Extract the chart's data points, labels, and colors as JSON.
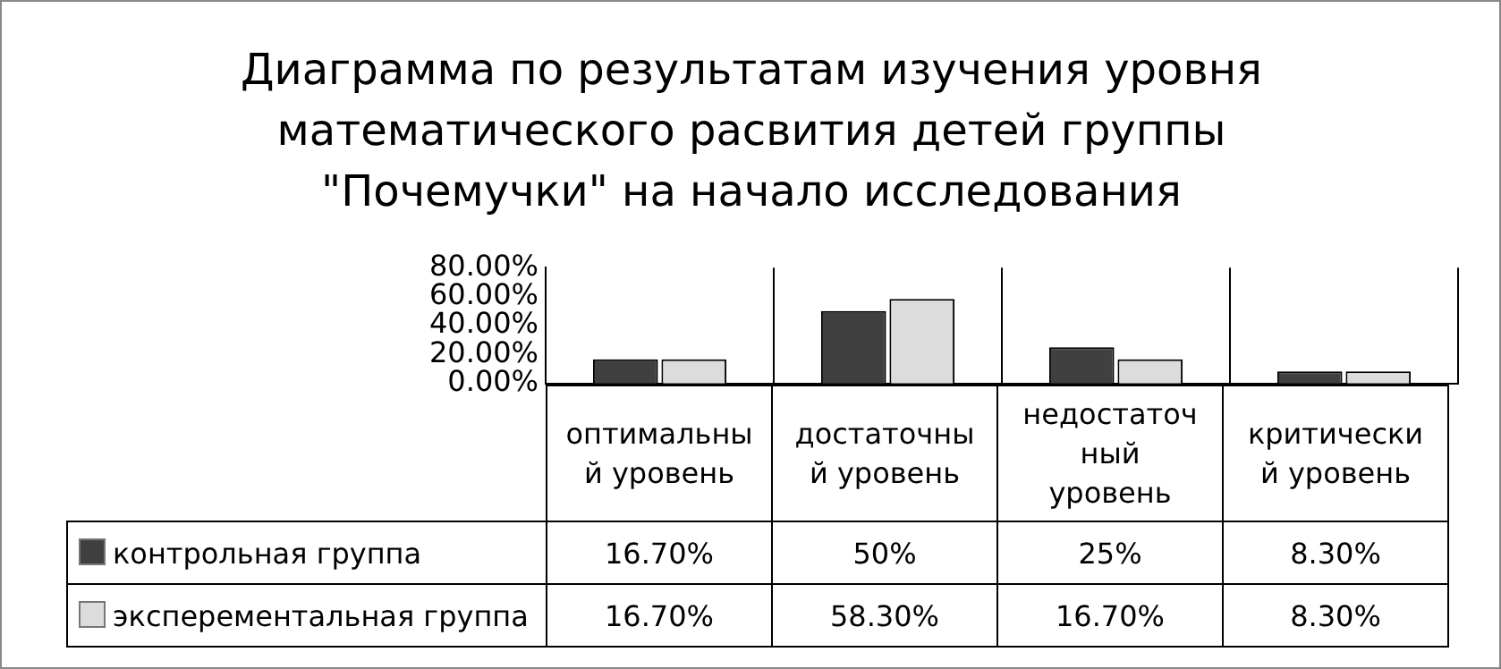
{
  "chart_data": {
    "type": "bar",
    "title": "Диаграмма по результатам изучения уровня математического расвития детей группы \"Почемучки\" на начало исследования",
    "categories": [
      "оптимальный уровень",
      "достаточный уровень",
      "недостаточный уровень",
      "критический уровень"
    ],
    "series": [
      {
        "name": "контрольная группа",
        "color": "#404040",
        "values": [
          16.7,
          50,
          25,
          8.3
        ],
        "value_labels": [
          "16.70%",
          "50%",
          "25%",
          "8.30%"
        ]
      },
      {
        "name": "эксперементальная группа",
        "color": "#dcdcdc",
        "values": [
          16.7,
          58.3,
          16.7,
          8.3
        ],
        "value_labels": [
          "16.70%",
          "58.30%",
          "16.70%",
          "8.30%"
        ]
      }
    ],
    "ylim": [
      0,
      80
    ],
    "yticks": [
      {
        "value": 0,
        "label": "0.00%"
      },
      {
        "value": 20,
        "label": "20.00%"
      },
      {
        "value": 40,
        "label": "40.00%"
      },
      {
        "value": 60,
        "label": "60.00%"
      },
      {
        "value": 80,
        "label": "80.00%"
      }
    ],
    "grid": false,
    "legend": "bottom left"
  }
}
